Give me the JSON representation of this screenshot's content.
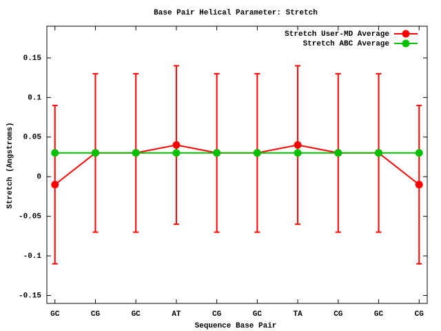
{
  "chart_data": {
    "type": "line",
    "title": "Base Pair Helical Parameter: Stretch",
    "xlabel": "Sequence Base Pair",
    "ylabel": "Stretch (Angstroms)",
    "categories": [
      "GC",
      "CG",
      "GC",
      "AT",
      "CG",
      "GC",
      "TA",
      "CG",
      "GC",
      "CG"
    ],
    "series": [
      {
        "name": "Stretch User-MD Average",
        "color": "#ff0000",
        "values": [
          -0.01,
          0.03,
          0.03,
          0.04,
          0.03,
          0.03,
          0.04,
          0.03,
          0.03,
          -0.01
        ],
        "errors": [
          0.1,
          0.1,
          0.1,
          0.1,
          0.1,
          0.1,
          0.1,
          0.1,
          0.1,
          0.1
        ]
      },
      {
        "name": "Stretch ABC Average",
        "color": "#00c000",
        "values": [
          0.03,
          0.03,
          0.03,
          0.03,
          0.03,
          0.03,
          0.03,
          0.03,
          0.03,
          0.03
        ]
      }
    ],
    "ylim": [
      -0.16,
      0.19
    ],
    "yticks": [
      -0.15,
      -0.1,
      -0.05,
      0,
      0.05,
      0.1,
      0.15
    ],
    "legend": "upper right"
  }
}
